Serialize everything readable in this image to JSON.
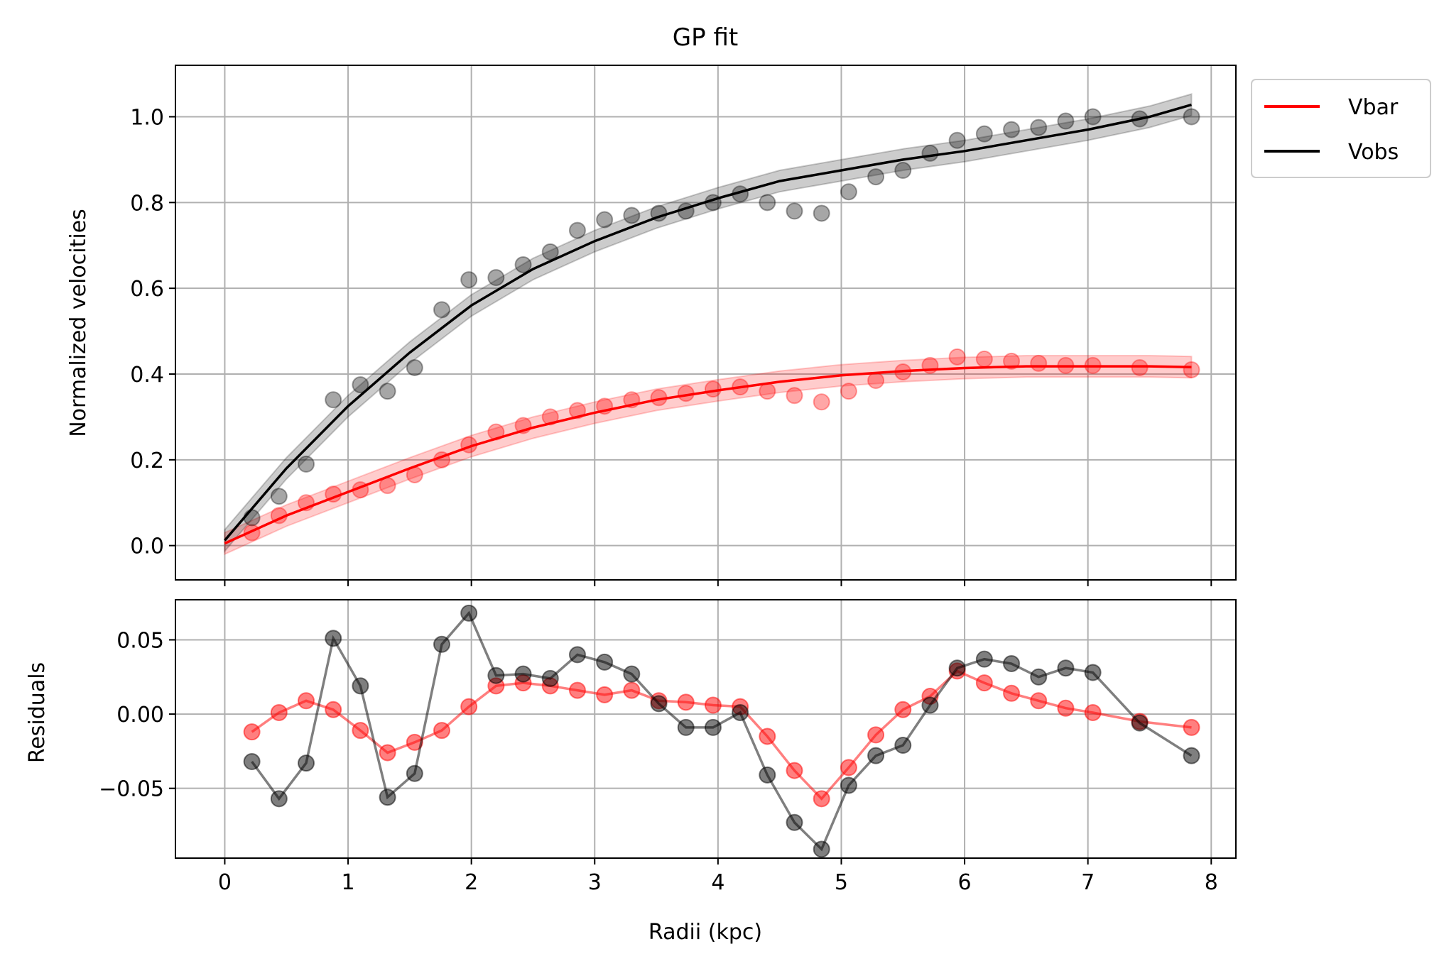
{
  "chart_data": [
    {
      "type": "line",
      "title": "GP fit",
      "xlabel": "",
      "ylabel": "Normalized velocities",
      "xlim": [
        -0.4,
        8.2
      ],
      "ylim": [
        -0.08,
        1.12
      ],
      "xticks": [
        0,
        1,
        2,
        3,
        4,
        5,
        6,
        7,
        8
      ],
      "xtick_labels_visible": false,
      "yticks": [
        0.0,
        0.2,
        0.4,
        0.6,
        0.8,
        1.0
      ],
      "ytick_labels": [
        "0.0",
        "0.2",
        "0.4",
        "0.6",
        "0.8",
        "1.0"
      ],
      "grid": true,
      "legend": {
        "position": "outside-top-right",
        "entries": [
          "Vbar",
          "Vobs"
        ]
      },
      "x_data": [
        0.22,
        0.44,
        0.66,
        0.88,
        1.1,
        1.32,
        1.54,
        1.76,
        1.98,
        2.2,
        2.42,
        2.64,
        2.86,
        3.08,
        3.3,
        3.52,
        3.74,
        3.96,
        4.18,
        4.4,
        4.62,
        4.84,
        5.06,
        5.28,
        5.5,
        5.72,
        5.94,
        6.16,
        6.38,
        6.6,
        6.82,
        7.04,
        7.42,
        7.84
      ],
      "series": [
        {
          "name": "Vbar",
          "color": "#ff0000",
          "observed": [
            0.03,
            0.07,
            0.1,
            0.12,
            0.13,
            0.14,
            0.165,
            0.2,
            0.235,
            0.265,
            0.28,
            0.3,
            0.315,
            0.325,
            0.34,
            0.345,
            0.355,
            0.365,
            0.37,
            0.36,
            0.35,
            0.335,
            0.36,
            0.385,
            0.405,
            0.42,
            0.44,
            0.435,
            0.43,
            0.425,
            0.42,
            0.42,
            0.415,
            0.41
          ],
          "fit_x": [
            0.0,
            0.5,
            1.0,
            1.5,
            2.0,
            2.5,
            3.0,
            3.5,
            4.0,
            4.5,
            5.0,
            5.5,
            6.0,
            6.5,
            7.0,
            7.5,
            7.84
          ],
          "fit_y": [
            0.005,
            0.07,
            0.125,
            0.18,
            0.232,
            0.275,
            0.31,
            0.34,
            0.362,
            0.382,
            0.397,
            0.407,
            0.414,
            0.418,
            0.418,
            0.418,
            0.416
          ],
          "band_halfwidth": 0.025
        },
        {
          "name": "Vobs",
          "color": "#000000",
          "observed": [
            0.065,
            0.115,
            0.19,
            0.34,
            0.375,
            0.36,
            0.415,
            0.55,
            0.62,
            0.625,
            0.655,
            0.685,
            0.735,
            0.76,
            0.77,
            0.775,
            0.78,
            0.8,
            0.82,
            0.8,
            0.78,
            0.775,
            0.825,
            0.86,
            0.875,
            0.915,
            0.945,
            0.96,
            0.97,
            0.975,
            0.99,
            1.0,
            0.995,
            1.0
          ],
          "fit_x": [
            0.0,
            0.5,
            1.0,
            1.5,
            2.0,
            2.5,
            3.0,
            3.5,
            4.0,
            4.5,
            5.0,
            5.5,
            6.0,
            6.5,
            7.0,
            7.5,
            7.84
          ],
          "fit_y": [
            0.012,
            0.18,
            0.325,
            0.45,
            0.56,
            0.645,
            0.71,
            0.765,
            0.81,
            0.85,
            0.875,
            0.9,
            0.92,
            0.945,
            0.97,
            1.0,
            1.028
          ],
          "band_halfwidth": 0.025
        }
      ]
    },
    {
      "type": "line",
      "title": "",
      "xlabel": "Radii (kpc)",
      "ylabel": "Residuals",
      "xlim": [
        -0.4,
        8.2
      ],
      "ylim": [
        -0.097,
        0.077
      ],
      "xticks": [
        0,
        1,
        2,
        3,
        4,
        5,
        6,
        7,
        8
      ],
      "xtick_labels": [
        "0",
        "1",
        "2",
        "3",
        "4",
        "5",
        "6",
        "7",
        "8"
      ],
      "yticks": [
        0.05,
        0.0,
        -0.05
      ],
      "ytick_labels": [
        "0.05",
        "0.00",
        "−0.05"
      ],
      "grid": true,
      "x": [
        0.22,
        0.44,
        0.66,
        0.88,
        1.1,
        1.32,
        1.54,
        1.76,
        1.98,
        2.2,
        2.42,
        2.64,
        2.86,
        3.08,
        3.3,
        3.52,
        3.74,
        3.96,
        4.18,
        4.4,
        4.62,
        4.84,
        5.06,
        5.28,
        5.5,
        5.72,
        5.94,
        6.16,
        6.38,
        6.6,
        6.82,
        7.04,
        7.42,
        7.84
      ],
      "series": [
        {
          "name": "Vbar",
          "color": "#ff0000",
          "values": [
            -0.012,
            0.001,
            0.009,
            0.003,
            -0.011,
            -0.026,
            -0.019,
            -0.011,
            0.005,
            0.019,
            0.021,
            0.019,
            0.016,
            0.013,
            0.016,
            0.009,
            0.008,
            0.006,
            0.005,
            -0.015,
            -0.038,
            -0.057,
            -0.036,
            -0.014,
            0.003,
            0.012,
            0.029,
            0.021,
            0.014,
            0.009,
            0.004,
            0.001,
            -0.005,
            -0.009
          ]
        },
        {
          "name": "Vobs",
          "color": "#000000",
          "values": [
            -0.032,
            -0.057,
            -0.033,
            0.051,
            0.019,
            -0.056,
            -0.04,
            0.047,
            0.068,
            0.026,
            0.027,
            0.024,
            0.04,
            0.035,
            0.027,
            0.007,
            -0.009,
            -0.009,
            0.001,
            -0.041,
            -0.073,
            -0.091,
            -0.048,
            -0.028,
            -0.021,
            0.006,
            0.031,
            0.037,
            0.034,
            0.025,
            0.031,
            0.028,
            -0.006,
            -0.028
          ]
        }
      ]
    }
  ]
}
